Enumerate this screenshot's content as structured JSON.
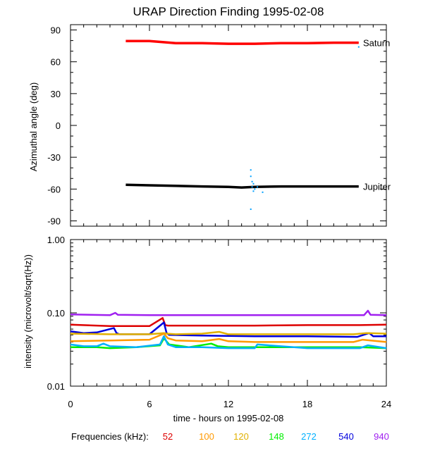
{
  "chart_data": [
    {
      "type": "line",
      "title": "URAP Direction Finding  1995-02-08",
      "ylabel": "Azimuthal angle (deg)",
      "xlabel": "",
      "xlim": [
        0,
        24
      ],
      "ylim": [
        -95,
        95
      ],
      "yticks": [
        90,
        60,
        30,
        0,
        -30,
        -60,
        -90
      ],
      "series": [
        {
          "name": "Saturn",
          "label": "Saturn",
          "color": "#ff0000",
          "x": [
            4.2,
            6,
            7,
            8,
            10,
            12,
            14,
            16,
            18,
            20,
            21.9
          ],
          "values": [
            79.5,
            79.5,
            78.5,
            77.5,
            77.5,
            77,
            77,
            77.5,
            77.5,
            78,
            78
          ]
        },
        {
          "name": "Jupiter",
          "label": "Jupiter",
          "color": "#000000",
          "x": [
            4.2,
            6,
            8,
            10,
            12,
            13,
            14,
            16,
            18,
            20,
            21.9
          ],
          "values": [
            -56,
            -56.5,
            -57,
            -57.5,
            -58,
            -58.5,
            -58,
            -57.5,
            -57.5,
            -57.5,
            -57.5
          ]
        },
        {
          "name": "272 kHz scatter",
          "color": "#00a0ff",
          "scatter": true,
          "x": [
            13.7,
            13.7,
            13.8,
            13.9,
            13.8,
            14.0,
            13.9,
            14.2,
            14.6,
            13.7,
            21.9
          ],
          "values": [
            -42,
            -48,
            -53,
            -55,
            -58,
            -60,
            -62,
            -58,
            -63,
            -79,
            74
          ]
        }
      ]
    },
    {
      "type": "line",
      "ylabel": "intensity (microvolt/sqrt(Hz))",
      "xlabel": "time - hours on 1995-02-08",
      "xlim": [
        0,
        24
      ],
      "ylim": [
        0.01,
        1.0
      ],
      "yscale": "log",
      "xticks": [
        0,
        6,
        12,
        18,
        24
      ],
      "yticks": [
        1.0,
        0.1,
        0.01
      ],
      "ytick_labels": [
        "1.00",
        "0.10",
        "0.01"
      ],
      "series": [
        {
          "name": "940",
          "color": "#a020f0",
          "x": [
            0,
            3,
            3.4,
            3.6,
            6,
            10,
            14,
            18,
            22.3,
            22.6,
            22.8,
            24
          ],
          "values": [
            0.095,
            0.093,
            0.1,
            0.094,
            0.093,
            0.093,
            0.093,
            0.093,
            0.093,
            0.107,
            0.094,
            0.093
          ]
        },
        {
          "name": "52",
          "color": "#dd0000",
          "x": [
            0,
            3,
            6,
            7.0,
            7.2,
            7.4,
            10,
            14,
            18,
            22,
            24
          ],
          "values": [
            0.069,
            0.066,
            0.066,
            0.085,
            0.068,
            0.067,
            0.067,
            0.067,
            0.068,
            0.068,
            0.069
          ]
        },
        {
          "name": "540",
          "color": "#0000dd",
          "x": [
            0,
            1,
            2,
            3.3,
            3.5,
            3.7,
            6,
            7.1,
            7.3,
            7.5,
            10,
            14,
            18,
            21.8,
            22.7,
            23,
            24
          ],
          "values": [
            0.056,
            0.053,
            0.054,
            0.062,
            0.053,
            0.051,
            0.051,
            0.074,
            0.053,
            0.05,
            0.049,
            0.048,
            0.048,
            0.047,
            0.053,
            0.048,
            0.048
          ]
        },
        {
          "name": "120",
          "color": "#e0b000",
          "x": [
            0,
            3,
            6,
            7.1,
            7.3,
            8,
            10,
            11.3,
            12,
            14,
            18,
            21.5,
            22.5,
            24
          ],
          "values": [
            0.052,
            0.051,
            0.051,
            0.053,
            0.052,
            0.051,
            0.052,
            0.055,
            0.051,
            0.051,
            0.051,
            0.051,
            0.053,
            0.052
          ]
        },
        {
          "name": "100",
          "color": "#ff9900",
          "x": [
            0,
            3,
            6,
            7.1,
            7.4,
            8,
            10,
            11.3,
            12,
            14,
            18,
            21.5,
            22.2,
            24
          ],
          "values": [
            0.041,
            0.042,
            0.043,
            0.052,
            0.045,
            0.042,
            0.041,
            0.044,
            0.041,
            0.04,
            0.04,
            0.04,
            0.043,
            0.04
          ]
        },
        {
          "name": "148",
          "color": "#00ee00",
          "x": [
            0,
            2,
            3,
            5,
            6.8,
            7.1,
            7.5,
            9,
            10.7,
            11.2,
            12,
            14,
            18,
            22,
            24
          ],
          "values": [
            0.034,
            0.034,
            0.033,
            0.034,
            0.036,
            0.045,
            0.037,
            0.034,
            0.038,
            0.035,
            0.034,
            0.034,
            0.034,
            0.034,
            0.033
          ]
        },
        {
          "name": "272",
          "color": "#00b0ff",
          "x": [
            0,
            1,
            2,
            2.5,
            3,
            5,
            6.8,
            7.1,
            7.4,
            8,
            10,
            12,
            14,
            14.2,
            18,
            22,
            22.6,
            24
          ],
          "values": [
            0.037,
            0.035,
            0.035,
            0.038,
            0.035,
            0.034,
            0.037,
            0.048,
            0.037,
            0.034,
            0.034,
            0.033,
            0.033,
            0.037,
            0.033,
            0.033,
            0.036,
            0.033
          ]
        }
      ]
    }
  ],
  "legend": {
    "label": "Frequencies (kHz):",
    "items": [
      {
        "text": "52",
        "color": "#dd0000"
      },
      {
        "text": "100",
        "color": "#ff9900"
      },
      {
        "text": "120",
        "color": "#e0b000"
      },
      {
        "text": "148",
        "color": "#00ee00"
      },
      {
        "text": "272",
        "color": "#00b0ff"
      },
      {
        "text": "540",
        "color": "#0000dd"
      },
      {
        "text": "940",
        "color": "#a020f0"
      }
    ]
  }
}
